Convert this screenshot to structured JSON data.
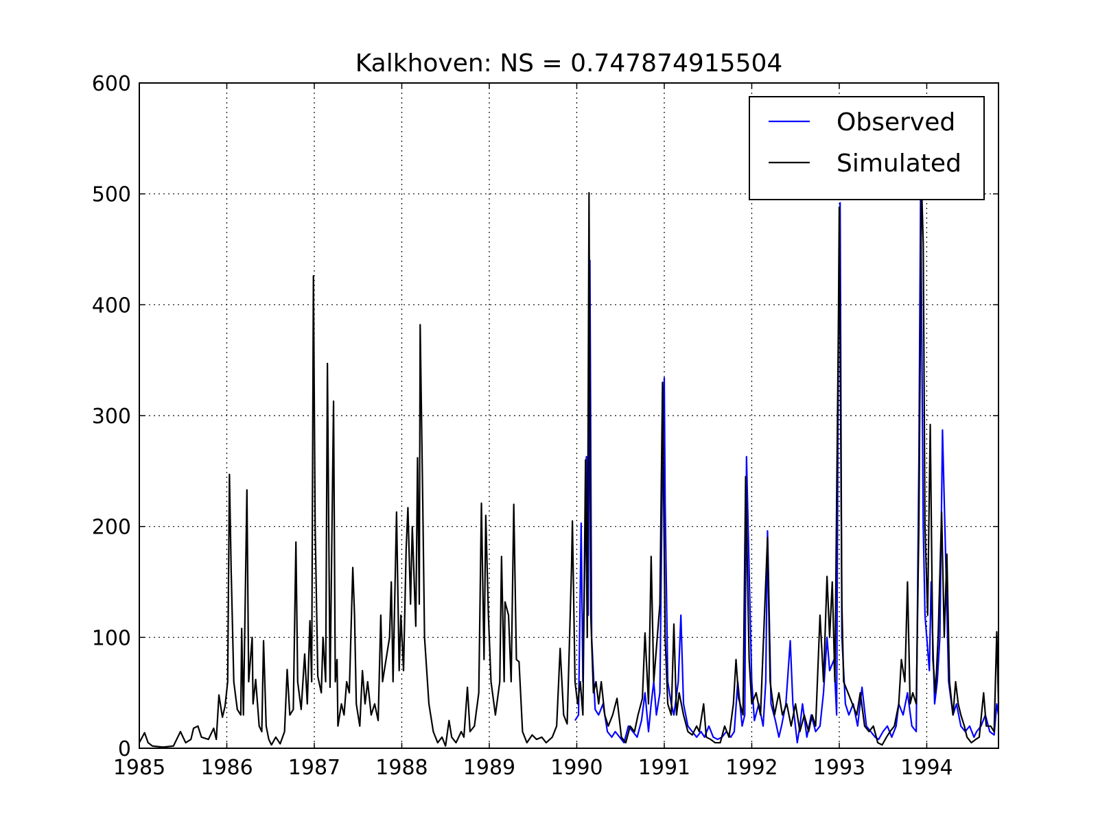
{
  "chart_data": {
    "type": "line",
    "title": "Kalkhoven: NS = 0.747874915504",
    "xlim": [
      1985,
      1994.82
    ],
    "ylim": [
      0,
      600
    ],
    "xticks": [
      1985,
      1986,
      1987,
      1988,
      1989,
      1990,
      1991,
      1992,
      1993,
      1994
    ],
    "yticks": [
      0,
      100,
      200,
      300,
      400,
      500,
      600
    ],
    "grid": true,
    "legend": "upper right",
    "series": [
      {
        "name": "Observed",
        "color": "#0000ff",
        "x": [
          1989.98,
          1990.02,
          1990.05,
          1990.07,
          1990.11,
          1990.13,
          1990.15,
          1990.17,
          1990.21,
          1990.25,
          1990.3,
          1990.35,
          1990.4,
          1990.44,
          1990.49,
          1990.54,
          1990.59,
          1990.64,
          1990.69,
          1990.74,
          1990.78,
          1990.82,
          1990.85,
          1990.88,
          1990.91,
          1990.95,
          1990.98,
          1991.0,
          1991.01,
          1991.04,
          1991.08,
          1991.11,
          1991.16,
          1991.19,
          1991.22,
          1991.27,
          1991.32,
          1991.37,
          1991.42,
          1991.46,
          1991.51,
          1991.56,
          1991.61,
          1991.66,
          1991.71,
          1991.76,
          1991.8,
          1991.84,
          1991.89,
          1991.92,
          1991.94,
          1991.97,
          1992.0,
          1992.03,
          1992.08,
          1992.13,
          1992.16,
          1992.18,
          1992.19,
          1992.22,
          1992.27,
          1992.31,
          1992.34,
          1992.39,
          1992.44,
          1992.47,
          1992.52,
          1992.55,
          1992.58,
          1992.63,
          1992.68,
          1992.73,
          1992.78,
          1992.82,
          1992.86,
          1992.89,
          1992.94,
          1992.97,
          1992.99,
          1993.01,
          1993.03,
          1993.07,
          1993.11,
          1993.16,
          1993.21,
          1993.26,
          1993.31,
          1993.36,
          1993.41,
          1993.45,
          1993.5,
          1993.55,
          1993.6,
          1993.65,
          1993.68,
          1993.73,
          1993.78,
          1993.83,
          1993.88,
          1993.91,
          1993.93,
          1993.96,
          1993.98,
          1994.0,
          1994.03,
          1994.05,
          1994.09,
          1994.12,
          1994.15,
          1994.18,
          1994.22,
          1994.25,
          1994.3,
          1994.34,
          1994.39,
          1994.44,
          1994.49,
          1994.54,
          1994.57,
          1994.62,
          1994.67,
          1994.72,
          1994.77,
          1994.8,
          1994.82
        ],
        "values": [
          25,
          30,
          203,
          60,
          263,
          120,
          440,
          100,
          35,
          30,
          40,
          15,
          10,
          15,
          10,
          5,
          20,
          15,
          10,
          25,
          50,
          15,
          40,
          60,
          30,
          50,
          265,
          334,
          222,
          60,
          40,
          30,
          60,
          120,
          40,
          20,
          15,
          10,
          15,
          10,
          20,
          10,
          8,
          10,
          15,
          10,
          15,
          60,
          20,
          30,
          263,
          160,
          60,
          25,
          40,
          20,
          60,
          196,
          160,
          40,
          25,
          10,
          20,
          40,
          97,
          40,
          5,
          20,
          40,
          10,
          30,
          15,
          20,
          50,
          100,
          70,
          80,
          30,
          370,
          492,
          100,
          40,
          30,
          40,
          20,
          55,
          20,
          15,
          10,
          8,
          15,
          20,
          10,
          20,
          40,
          30,
          50,
          20,
          15,
          258,
          505,
          200,
          120,
          100,
          70,
          150,
          40,
          60,
          100,
          287,
          160,
          60,
          30,
          40,
          20,
          15,
          20,
          10,
          15,
          20,
          30,
          15,
          12,
          40,
          30
        ]
      },
      {
        "name": "Simulated",
        "color": "#000000",
        "x": [
          1985.0,
          1985.06,
          1985.1,
          1985.15,
          1985.27,
          1985.39,
          1985.47,
          1985.53,
          1985.59,
          1985.62,
          1985.67,
          1985.71,
          1985.79,
          1985.85,
          1985.88,
          1985.91,
          1985.95,
          1985.98,
          1986.01,
          1986.03,
          1986.05,
          1986.08,
          1986.12,
          1986.16,
          1986.17,
          1986.19,
          1986.21,
          1986.23,
          1986.25,
          1986.29,
          1986.3,
          1986.33,
          1986.37,
          1986.4,
          1986.42,
          1986.45,
          1986.48,
          1986.51,
          1986.56,
          1986.61,
          1986.66,
          1986.69,
          1986.72,
          1986.76,
          1986.79,
          1986.81,
          1986.85,
          1986.89,
          1986.92,
          1986.95,
          1986.97,
          1986.99,
          1987.01,
          1987.04,
          1987.08,
          1987.1,
          1987.13,
          1987.15,
          1987.18,
          1987.22,
          1987.24,
          1987.26,
          1987.27,
          1987.31,
          1987.34,
          1987.37,
          1987.4,
          1987.44,
          1987.46,
          1987.48,
          1987.52,
          1987.55,
          1987.58,
          1987.61,
          1987.65,
          1987.69,
          1987.73,
          1987.76,
          1987.78,
          1987.82,
          1987.86,
          1987.88,
          1987.9,
          1987.94,
          1987.97,
          1987.99,
          1988.02,
          1988.05,
          1988.07,
          1988.1,
          1988.12,
          1988.16,
          1988.18,
          1988.2,
          1988.21,
          1988.24,
          1988.26,
          1988.31,
          1988.36,
          1988.41,
          1988.46,
          1988.5,
          1988.54,
          1988.57,
          1988.62,
          1988.68,
          1988.71,
          1988.75,
          1988.78,
          1988.83,
          1988.88,
          1988.91,
          1988.94,
          1988.96,
          1988.99,
          1989.02,
          1989.07,
          1989.12,
          1989.14,
          1989.17,
          1989.18,
          1989.22,
          1989.25,
          1989.28,
          1989.31,
          1989.34,
          1989.38,
          1989.43,
          1989.49,
          1989.54,
          1989.6,
          1989.65,
          1989.72,
          1989.77,
          1989.81,
          1989.85,
          1989.89,
          1989.94,
          1989.95,
          1989.98,
          1990.01,
          1990.04,
          1990.07,
          1990.1,
          1990.12,
          1990.14,
          1990.16,
          1990.19,
          1990.22,
          1990.25,
          1990.28,
          1990.32,
          1990.36,
          1990.41,
          1990.46,
          1990.51,
          1990.56,
          1990.61,
          1990.66,
          1990.7,
          1990.75,
          1990.78,
          1990.82,
          1990.85,
          1990.88,
          1990.91,
          1990.95,
          1990.98,
          1991.01,
          1991.04,
          1991.08,
          1991.11,
          1991.14,
          1991.17,
          1991.22,
          1991.27,
          1991.32,
          1991.37,
          1991.4,
          1991.45,
          1991.48,
          1991.53,
          1991.58,
          1991.64,
          1991.69,
          1991.74,
          1991.79,
          1991.82,
          1991.85,
          1991.9,
          1991.93,
          1991.97,
          1992.0,
          1992.05,
          1992.1,
          1992.14,
          1992.18,
          1992.21,
          1992.26,
          1992.31,
          1992.35,
          1992.4,
          1992.45,
          1992.5,
          1992.55,
          1992.6,
          1992.65,
          1992.69,
          1992.73,
          1992.78,
          1992.82,
          1992.86,
          1992.89,
          1992.92,
          1992.95,
          1992.99,
          1993.0,
          1993.03,
          1993.05,
          1993.1,
          1993.15,
          1993.2,
          1993.24,
          1993.29,
          1993.34,
          1993.39,
          1993.44,
          1993.49,
          1993.54,
          1993.58,
          1993.63,
          1993.68,
          1993.71,
          1993.75,
          1993.78,
          1993.81,
          1993.84,
          1993.88,
          1993.91,
          1993.94,
          1993.96,
          1993.98,
          1994.01,
          1994.04,
          1994.07,
          1994.1,
          1994.13,
          1994.17,
          1994.2,
          1994.23,
          1994.26,
          1994.3,
          1994.33,
          1994.36,
          1994.39,
          1994.43,
          1994.46,
          1994.51,
          1994.56,
          1994.6,
          1994.65,
          1994.68,
          1994.73,
          1994.77,
          1994.8,
          1994.82
        ],
        "values": [
          5,
          14,
          5,
          2,
          1,
          2,
          15,
          5,
          8,
          18,
          20,
          10,
          8,
          18,
          8,
          48,
          28,
          38,
          60,
          247,
          160,
          60,
          35,
          30,
          108,
          30,
          130,
          233,
          60,
          100,
          40,
          62,
          20,
          15,
          97,
          20,
          8,
          3,
          10,
          4,
          15,
          71,
          30,
          35,
          186,
          60,
          35,
          85,
          40,
          115,
          60,
          426,
          200,
          65,
          50,
          100,
          60,
          347,
          55,
          313,
          60,
          80,
          20,
          40,
          30,
          60,
          50,
          163,
          120,
          40,
          20,
          70,
          40,
          60,
          30,
          40,
          25,
          120,
          60,
          80,
          100,
          150,
          60,
          213,
          70,
          120,
          70,
          180,
          217,
          130,
          200,
          110,
          262,
          130,
          382,
          220,
          100,
          40,
          15,
          5,
          10,
          2,
          25,
          10,
          5,
          15,
          10,
          55,
          15,
          20,
          50,
          221,
          80,
          210,
          120,
          60,
          30,
          60,
          173,
          60,
          132,
          120,
          60,
          220,
          80,
          78,
          15,
          5,
          12,
          8,
          10,
          5,
          10,
          20,
          90,
          30,
          22,
          163,
          205,
          60,
          40,
          60,
          30,
          260,
          100,
          501,
          120,
          50,
          60,
          40,
          60,
          30,
          20,
          30,
          45,
          10,
          5,
          20,
          15,
          30,
          45,
          104,
          40,
          173,
          60,
          90,
          130,
          330,
          100,
          40,
          30,
          112,
          30,
          50,
          30,
          15,
          12,
          20,
          15,
          40,
          10,
          8,
          5,
          5,
          20,
          10,
          40,
          80,
          45,
          30,
          245,
          80,
          40,
          50,
          30,
          110,
          190,
          60,
          30,
          50,
          30,
          40,
          20,
          40,
          15,
          30,
          15,
          30,
          20,
          120,
          60,
          155,
          100,
          150,
          60,
          380,
          488,
          130,
          60,
          50,
          40,
          30,
          50,
          20,
          15,
          20,
          5,
          3,
          10,
          15,
          20,
          40,
          80,
          60,
          150,
          40,
          50,
          40,
          200,
          510,
          455,
          200,
          120,
          292,
          80,
          50,
          100,
          213,
          100,
          175,
          60,
          30,
          60,
          40,
          30,
          20,
          10,
          5,
          8,
          10,
          50,
          20,
          20,
          15,
          105,
          40
        ]
      }
    ]
  }
}
